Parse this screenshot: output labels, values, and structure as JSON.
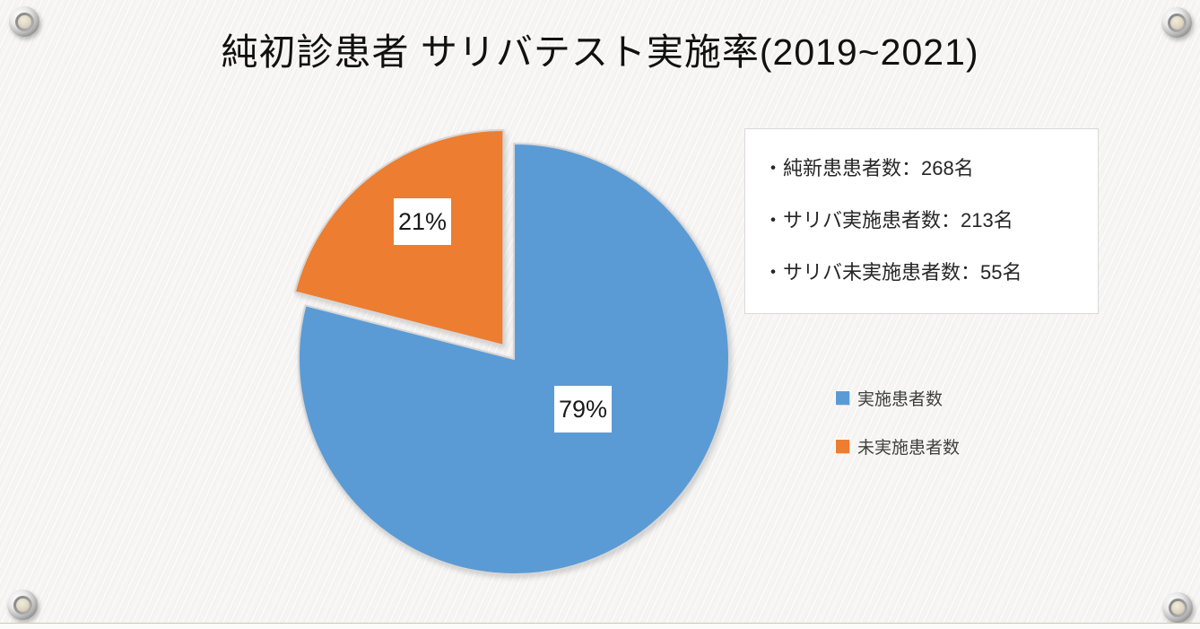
{
  "slide": {
    "title": "純初診患者 サリバテスト実施率(2019~2021)"
  },
  "chart_data": {
    "type": "pie",
    "title": "純初診患者 サリバテスト実施率(2019~2021)",
    "labels": [
      "実施患者数",
      "未実施患者数"
    ],
    "values": [
      213,
      55
    ],
    "percents": [
      79,
      21
    ],
    "percent_labels": [
      "79%",
      "21%"
    ],
    "colors": [
      "#5B9BD5",
      "#ED7D31"
    ],
    "slice_border_color": "#d6d6d6",
    "exploded_index": 1,
    "start_angle_deg": 0,
    "direction": "clockwise",
    "legend_position": "right-middle",
    "data_label_style": "percent-on-white-box"
  },
  "info_box": {
    "lines": [
      "・純新患患者数：268名",
      "・サリバ実施患者数：213名",
      "・サリバ未実施患者数：55名"
    ]
  },
  "legend": {
    "items": [
      {
        "label": "実施患者数",
        "color": "#5B9BD5"
      },
      {
        "label": "未実施患者数",
        "color": "#ED7D31"
      }
    ]
  }
}
